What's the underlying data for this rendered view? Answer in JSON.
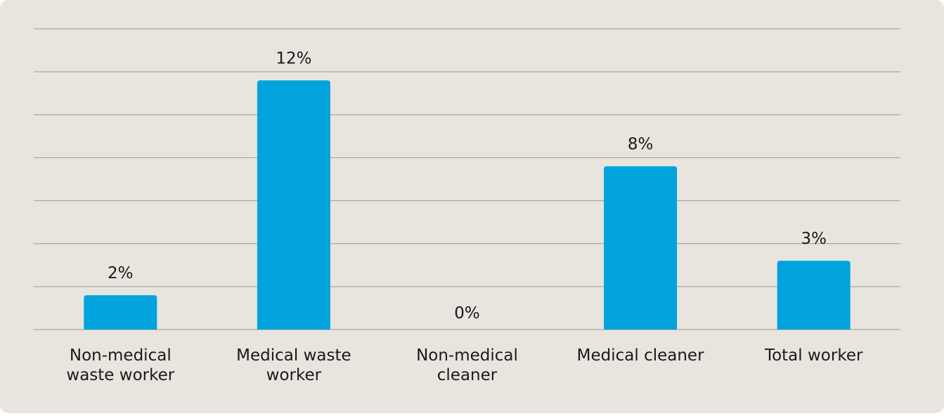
{
  "chart_data": {
    "type": "bar",
    "categories": [
      "Non-medical waste worker",
      "Medical waste worker",
      "Non-medical cleaner",
      "Medical cleaner",
      "Total worker"
    ],
    "values": [
      1.6,
      11.6,
      0,
      7.6,
      3.2
    ],
    "value_labels": [
      "2%",
      "12%",
      "0%",
      "8%",
      "3%"
    ],
    "color": "#00a3dc",
    "ylim": [
      0,
      14
    ],
    "yticks": [
      0,
      2,
      4,
      6,
      8,
      10,
      12,
      14
    ],
    "grid": true
  }
}
